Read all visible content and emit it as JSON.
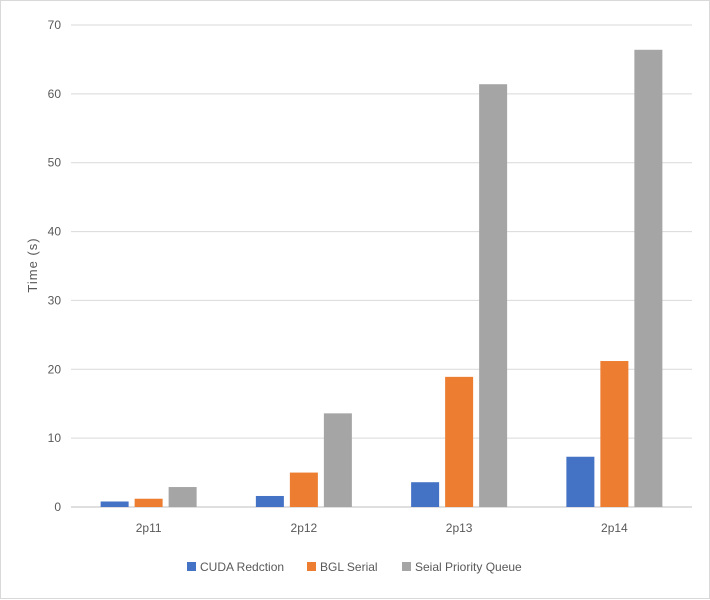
{
  "chart_data": {
    "type": "bar",
    "title": "",
    "xlabel": "",
    "ylabel": "Time (s)",
    "ylim": [
      0,
      70
    ],
    "yticks": [
      0,
      10,
      20,
      30,
      40,
      50,
      60,
      70
    ],
    "grid": true,
    "legend_position": "bottom",
    "categories": [
      "2p11",
      "2p12",
      "2p13",
      "2p14"
    ],
    "series": [
      {
        "name": "CUDA Redction",
        "color": "#4472C4",
        "values": [
          0.8,
          1.6,
          3.6,
          7.3
        ]
      },
      {
        "name": "BGL Serial",
        "color": "#ED7D31",
        "values": [
          1.2,
          5.0,
          18.9,
          21.2
        ]
      },
      {
        "name": "Seial Priority Queue",
        "color": "#A5A5A5",
        "values": [
          2.9,
          13.6,
          61.4,
          66.4
        ]
      }
    ]
  }
}
